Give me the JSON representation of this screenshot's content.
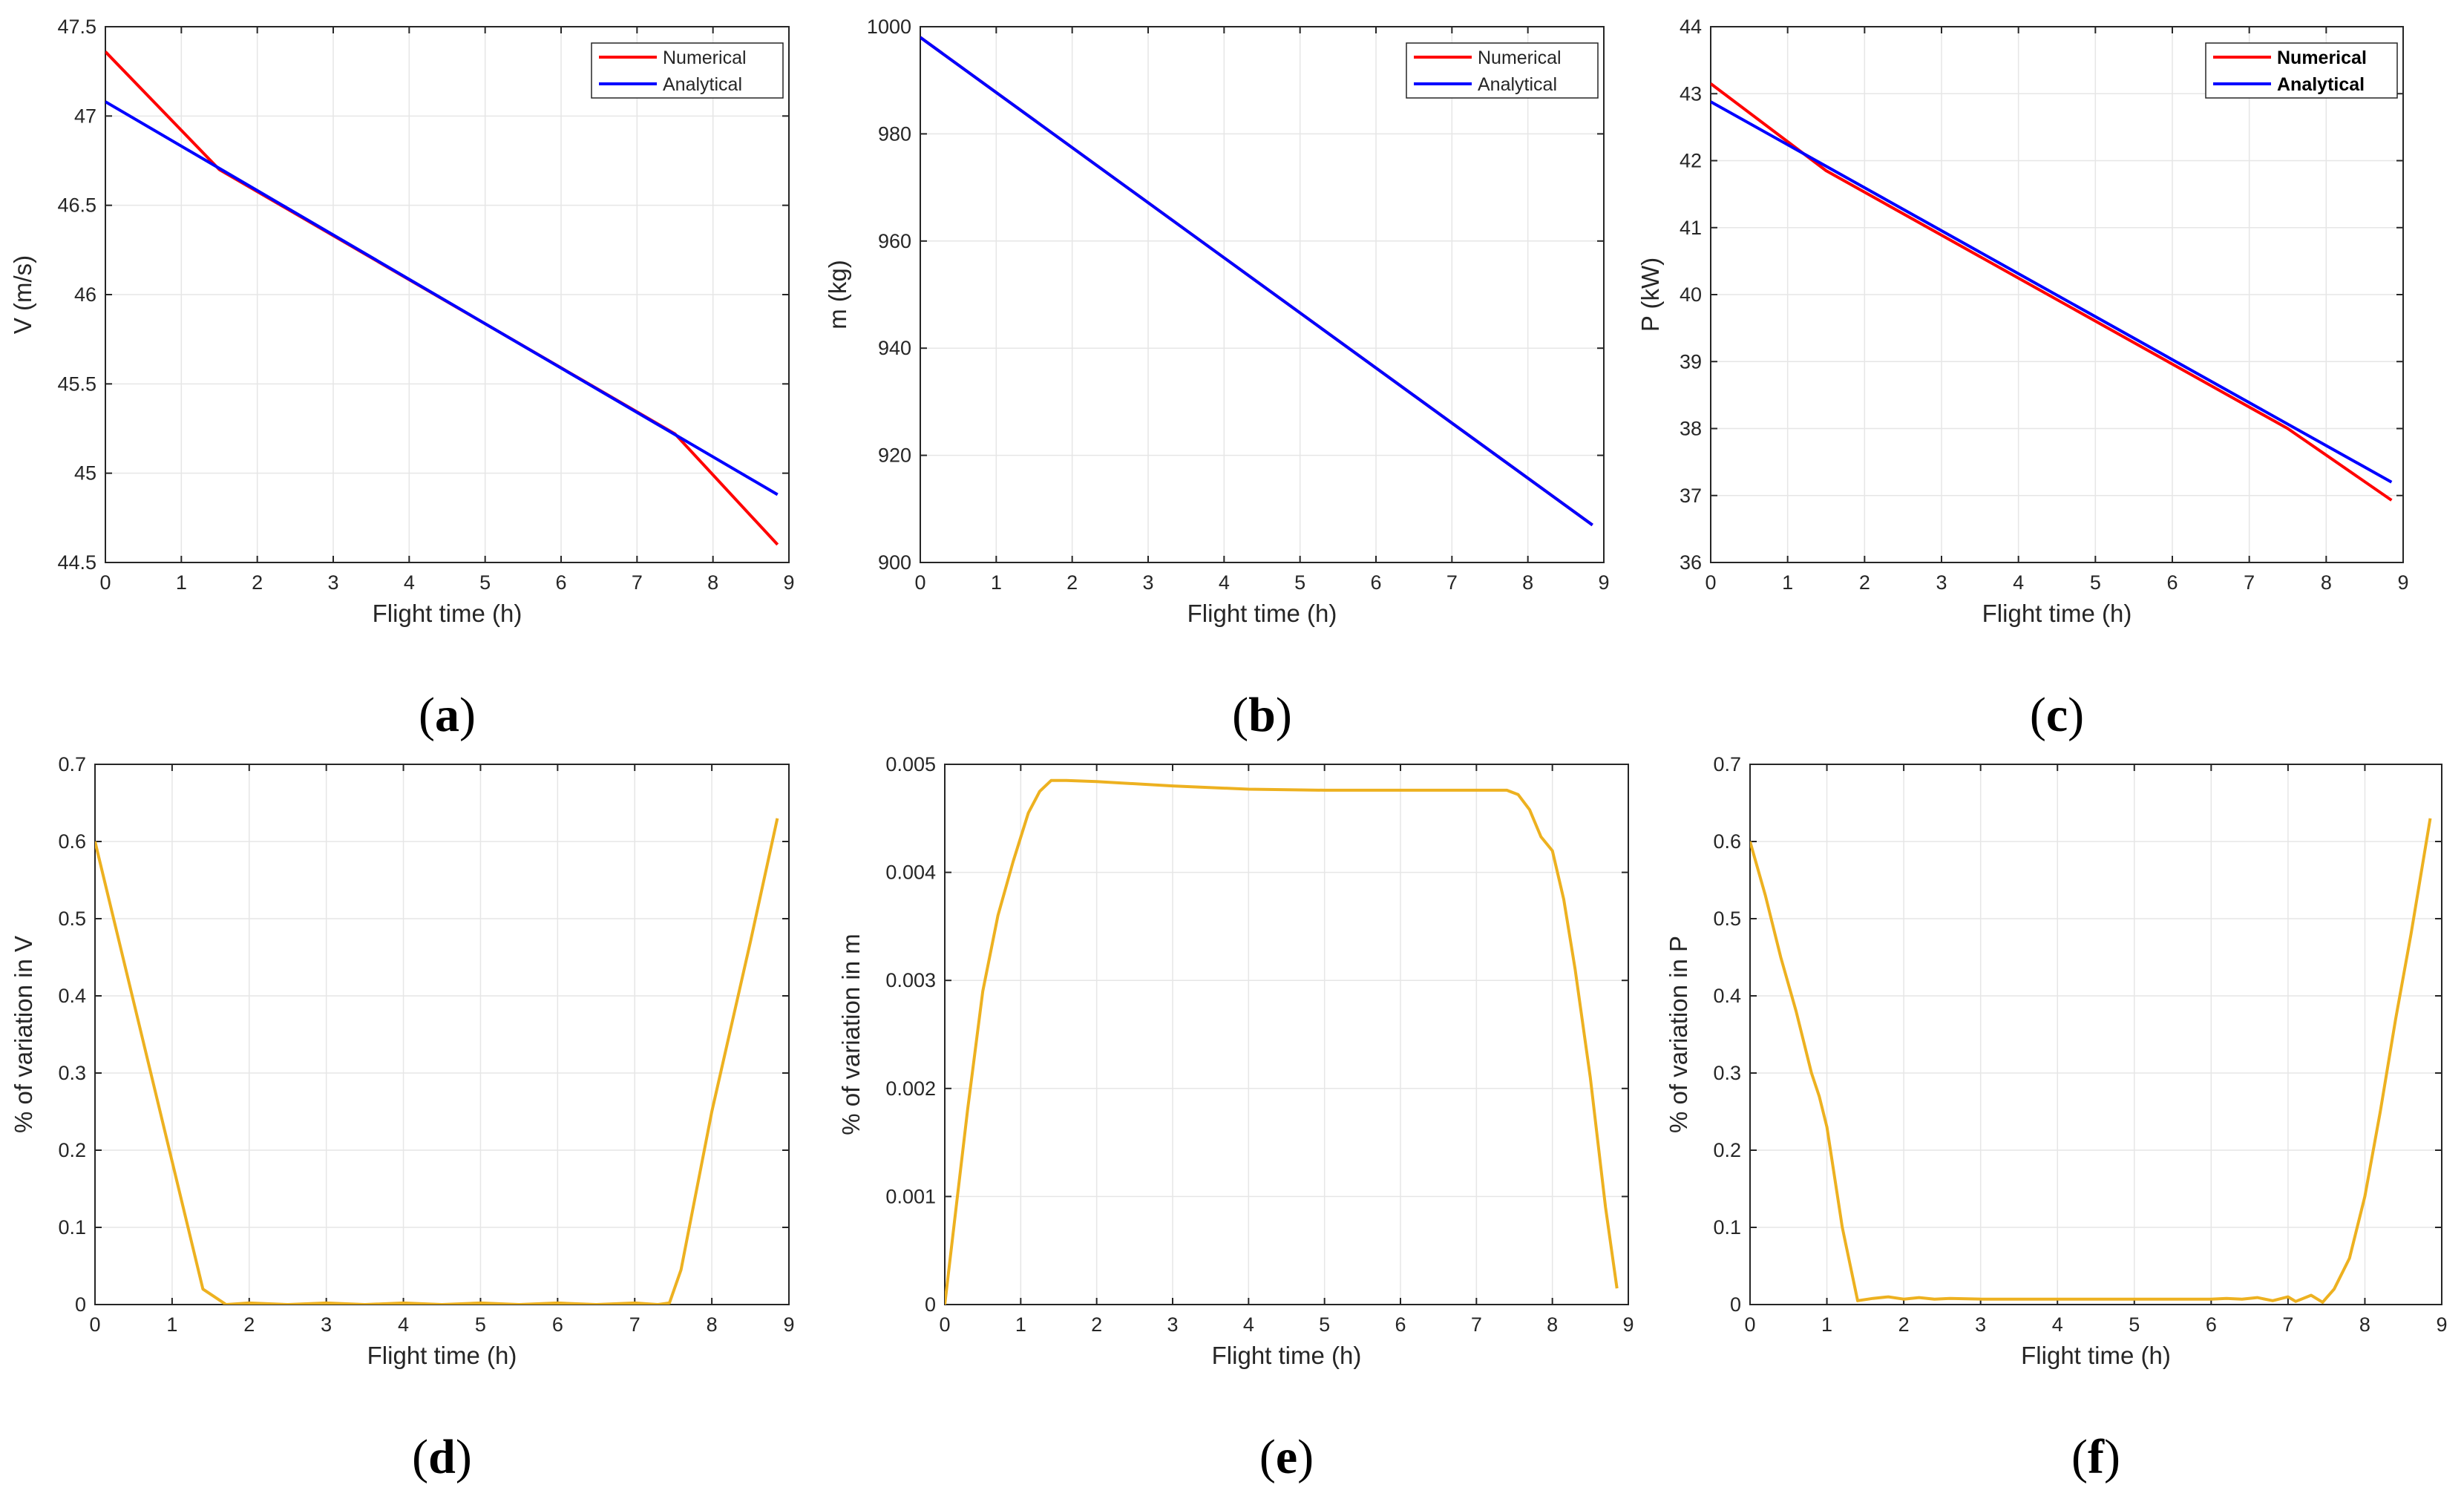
{
  "colors": {
    "numerical": "#ff0000",
    "analytical": "#0000ff",
    "variation": "#edb120",
    "grid": "#e6e6e6",
    "axis": "#262626"
  },
  "chart_data": [
    {
      "id": "a",
      "type": "line",
      "caption": {
        "open": "(",
        "letter": "a",
        "close": ")"
      },
      "xlabel": "Flight time (h)",
      "ylabel": "V (m/s)",
      "xlim": [
        0,
        9
      ],
      "ylim": [
        44.5,
        47.5
      ],
      "xticks": [
        "0",
        "1",
        "2",
        "3",
        "4",
        "5",
        "6",
        "7",
        "8",
        "9"
      ],
      "yticks": [
        "44.5",
        "45",
        "45.5",
        "46",
        "46.5",
        "47",
        "47.5"
      ],
      "legend": {
        "placement": "top-right",
        "bold": false
      },
      "series": [
        {
          "name": "Numerical",
          "color": "#ff0000",
          "x": [
            0,
            1.5,
            7.5,
            8.85
          ],
          "y": [
            47.36,
            46.7,
            45.22,
            44.6
          ]
        },
        {
          "name": "Analytical",
          "color": "#0000ff",
          "x": [
            0,
            8.85
          ],
          "y": [
            47.08,
            44.88
          ]
        }
      ]
    },
    {
      "id": "b",
      "type": "line",
      "caption": {
        "open": "(",
        "letter": "b",
        "close": ")"
      },
      "xlabel": "Flight time (h)",
      "ylabel": "m (kg)",
      "xlim": [
        0,
        9
      ],
      "ylim": [
        900,
        1000
      ],
      "xticks": [
        "0",
        "1",
        "2",
        "3",
        "4",
        "5",
        "6",
        "7",
        "8",
        "9"
      ],
      "yticks": [
        "900",
        "920",
        "940",
        "960",
        "980",
        "1000"
      ],
      "legend": {
        "placement": "top-right",
        "bold": false
      },
      "series": [
        {
          "name": "Numerical",
          "color": "#ff0000",
          "x": [
            0,
            8.85
          ],
          "y": [
            998,
            907
          ]
        },
        {
          "name": "Analytical",
          "color": "#0000ff",
          "x": [
            0,
            8.85
          ],
          "y": [
            998,
            907
          ]
        }
      ]
    },
    {
      "id": "c",
      "type": "line",
      "caption": {
        "open": "(",
        "letter": "c",
        "close": ")"
      },
      "xlabel": "Flight time (h)",
      "ylabel": "P (kW)",
      "xlim": [
        0,
        9
      ],
      "ylim": [
        36,
        44
      ],
      "xticks": [
        "0",
        "1",
        "2",
        "3",
        "4",
        "5",
        "6",
        "7",
        "8",
        "9"
      ],
      "yticks": [
        "36",
        "37",
        "38",
        "39",
        "40",
        "41",
        "42",
        "43",
        "44"
      ],
      "legend": {
        "placement": "top-right",
        "bold": true
      },
      "series": [
        {
          "name": "Numerical",
          "color": "#ff0000",
          "x": [
            0,
            1.5,
            7.5,
            8.85
          ],
          "y": [
            43.15,
            41.85,
            38.0,
            36.93
          ]
        },
        {
          "name": "Analytical",
          "color": "#0000ff",
          "x": [
            0,
            8.85
          ],
          "y": [
            42.88,
            37.2
          ]
        }
      ]
    },
    {
      "id": "d",
      "type": "line",
      "caption": {
        "open": "(",
        "letter": "d",
        "close": ")"
      },
      "xlabel": "Flight time (h)",
      "ylabel": "% of variation in V",
      "xlim": [
        0,
        9
      ],
      "ylim": [
        0,
        0.7
      ],
      "xticks": [
        "0",
        "1",
        "2",
        "3",
        "4",
        "5",
        "6",
        "7",
        "8",
        "9"
      ],
      "yticks": [
        "0",
        "0.1",
        "0.2",
        "0.3",
        "0.4",
        "0.5",
        "0.6",
        "0.7"
      ],
      "legend": null,
      "series": [
        {
          "name": "% of variation in V",
          "color": "#edb120",
          "x": [
            0,
            1.4,
            1.55,
            1.7,
            2.0,
            2.5,
            3,
            3.5,
            4,
            4.5,
            5,
            5.5,
            6,
            6.5,
            7,
            7.3,
            7.45,
            7.6,
            8.0,
            8.5,
            8.85
          ],
          "y": [
            0.6,
            0.02,
            0.01,
            0.0,
            0.002,
            0.0,
            0.002,
            0.0,
            0.002,
            0.0,
            0.002,
            0.0,
            0.002,
            0.0,
            0.002,
            0.0,
            0.002,
            0.045,
            0.25,
            0.47,
            0.63
          ]
        }
      ]
    },
    {
      "id": "e",
      "type": "line",
      "caption": {
        "open": "(",
        "letter": "e",
        "close": ")"
      },
      "xlabel": "Flight time (h)",
      "ylabel": "% of variation in m",
      "xlim": [
        0,
        9
      ],
      "ylim": [
        0,
        0.005
      ],
      "xticks": [
        "0",
        "1",
        "2",
        "3",
        "4",
        "5",
        "6",
        "7",
        "8",
        "9"
      ],
      "yticks": [
        "0",
        "0.001",
        "0.002",
        "0.003",
        "0.004",
        "0.005"
      ],
      "legend": null,
      "series": [
        {
          "name": "% of variation in m",
          "color": "#edb120",
          "x": [
            0,
            0.15,
            0.3,
            0.5,
            0.7,
            0.9,
            1.1,
            1.25,
            1.4,
            1.6,
            2,
            3,
            4,
            5,
            6,
            7,
            7.4,
            7.55,
            7.7,
            7.85,
            8.0,
            8.15,
            8.3,
            8.5,
            8.7,
            8.85
          ],
          "y": [
            0,
            0.0009,
            0.0018,
            0.0029,
            0.0036,
            0.0041,
            0.00455,
            0.00475,
            0.00485,
            0.00485,
            0.00484,
            0.0048,
            0.00477,
            0.00476,
            0.00476,
            0.00476,
            0.00476,
            0.00472,
            0.00458,
            0.00433,
            0.0042,
            0.00375,
            0.0031,
            0.0021,
            0.0009,
            0.00015
          ]
        }
      ]
    },
    {
      "id": "f",
      "type": "line",
      "caption": {
        "open": "(",
        "letter": "f",
        "close": ")"
      },
      "xlabel": "Flight time (h)",
      "ylabel": "% of variation in P",
      "xlim": [
        0,
        9
      ],
      "ylim": [
        0,
        0.7
      ],
      "xticks": [
        "0",
        "1",
        "2",
        "3",
        "4",
        "5",
        "6",
        "7",
        "8",
        "9"
      ],
      "yticks": [
        "0",
        "0.1",
        "0.2",
        "0.3",
        "0.4",
        "0.5",
        "0.6",
        "0.7"
      ],
      "legend": null,
      "series": [
        {
          "name": "% of variation in P",
          "color": "#edb120",
          "x": [
            0,
            0.2,
            0.4,
            0.6,
            0.8,
            0.9,
            1.0,
            1.2,
            1.4,
            1.6,
            1.8,
            2.0,
            2.2,
            2.4,
            2.6,
            3,
            4,
            5,
            6,
            6.2,
            6.4,
            6.6,
            6.8,
            7.0,
            7.1,
            7.3,
            7.45,
            7.6,
            7.8,
            8.0,
            8.2,
            8.4,
            8.6,
            8.85
          ],
          "y": [
            0.6,
            0.53,
            0.45,
            0.38,
            0.3,
            0.27,
            0.23,
            0.1,
            0.005,
            0.008,
            0.01,
            0.007,
            0.009,
            0.007,
            0.008,
            0.007,
            0.007,
            0.007,
            0.007,
            0.008,
            0.007,
            0.009,
            0.005,
            0.01,
            0.004,
            0.012,
            0.003,
            0.02,
            0.06,
            0.14,
            0.25,
            0.37,
            0.48,
            0.63
          ]
        }
      ]
    }
  ]
}
